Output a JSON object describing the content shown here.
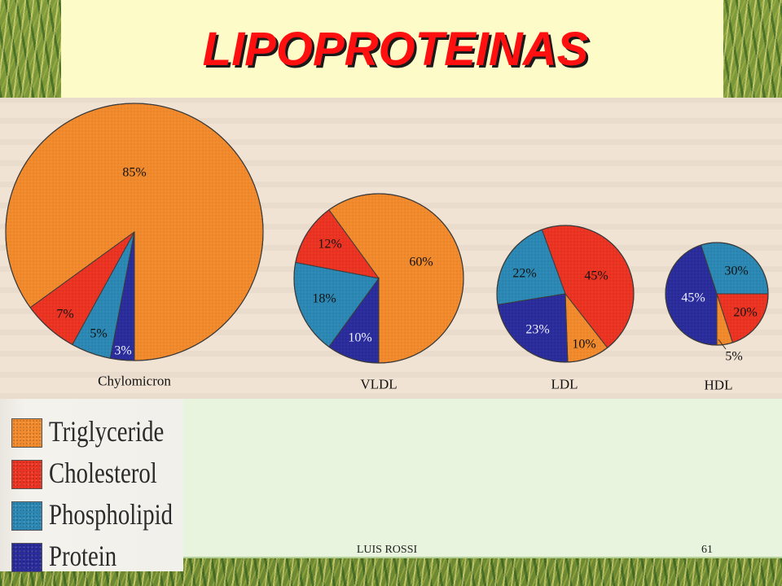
{
  "header": {
    "title": "LIPOPROTEINAS"
  },
  "chart_data": {
    "type": "pie",
    "categories": [
      "Triglyceride",
      "Cholesterol",
      "Phospholipid",
      "Protein"
    ],
    "colors": [
      "#f28a2c",
      "#ec3322",
      "#2b88b4",
      "#2a2c9c"
    ],
    "series": [
      {
        "name": "Chylomicron",
        "values": [
          85,
          7,
          5,
          3
        ],
        "labels": [
          "85%",
          "7%",
          "5%",
          "3%"
        ]
      },
      {
        "name": "VLDL",
        "values": [
          60,
          12,
          18,
          10
        ],
        "labels": [
          "60%",
          "12%",
          "18%",
          "10%"
        ]
      },
      {
        "name": "LDL",
        "values": [
          10,
          45,
          22,
          23
        ],
        "labels": [
          "10%",
          "45%",
          "22%",
          "23%"
        ]
      },
      {
        "name": "HDL",
        "values": [
          5,
          20,
          30,
          45
        ],
        "labels": [
          "5%",
          "20%",
          "30%",
          "45%"
        ]
      }
    ],
    "legend": "bottom-left"
  },
  "footer": {
    "author": "LUIS ROSSI",
    "page": "61"
  }
}
